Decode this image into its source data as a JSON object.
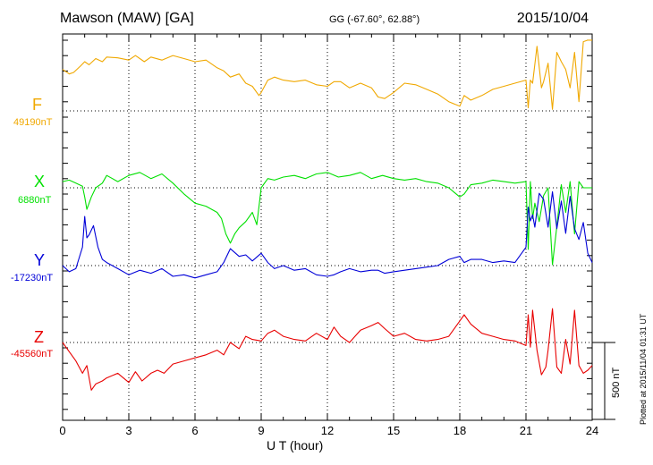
{
  "header": {
    "station": "Mawson (MAW)  [GA]",
    "coords": "GG (-67.60°,  62.88°)",
    "date": "2015/10/04"
  },
  "colors": {
    "F": "#f0a800",
    "X": "#00e000",
    "Y": "#0000d8",
    "Z": "#e80000"
  },
  "components": [
    {
      "key": "F",
      "name": "F",
      "baseline": "49190nT",
      "color": "#f0a800"
    },
    {
      "key": "X",
      "name": "X",
      "baseline": "6880nT",
      "color": "#00e000"
    },
    {
      "key": "Y",
      "name": "Y",
      "baseline": "-17230nT",
      "color": "#0000d8"
    },
    {
      "key": "Z",
      "name": "Z",
      "baseline": "-45560nT",
      "color": "#e80000"
    }
  ],
  "scale_bar": {
    "label": "500 nT",
    "value": 500
  },
  "plotted_note": "Plotted at 2015/11/04 01:31  UT",
  "chart_data": {
    "type": "line",
    "xlabel": "U T (hour)",
    "xlim": [
      0,
      24
    ],
    "xticks": [
      "0",
      "3",
      "6",
      "9",
      "12",
      "15",
      "18",
      "21",
      "24"
    ],
    "units": "nT",
    "series": [
      {
        "name": "F",
        "baseline": 49190,
        "x": [
          0,
          0.3,
          0.5,
          0.8,
          1,
          1.2,
          1.5,
          1.8,
          2,
          2.5,
          3,
          3.3,
          3.7,
          4,
          4.5,
          5,
          5.5,
          6,
          6.5,
          7,
          7.3,
          7.6,
          8,
          8.3,
          8.6,
          8.9,
          9,
          9.3,
          9.6,
          10,
          10.5,
          11,
          11.5,
          12,
          12.3,
          12.6,
          13,
          13.5,
          14,
          14.3,
          14.6,
          15,
          15.5,
          16,
          16.5,
          17,
          17.5,
          18,
          18.2,
          18.5,
          19,
          19.5,
          20,
          20.5,
          21,
          21.1,
          21.2,
          21.3,
          21.5,
          21.7,
          21.8,
          22,
          22.2,
          22.4,
          22.6,
          22.8,
          23,
          23.2,
          23.4,
          23.6,
          23.8,
          24
        ],
        "y": [
          270,
          240,
          250,
          290,
          320,
          300,
          340,
          320,
          350,
          345,
          330,
          360,
          320,
          350,
          330,
          360,
          340,
          320,
          330,
          280,
          260,
          220,
          240,
          180,
          160,
          100,
          120,
          200,
          220,
          200,
          190,
          200,
          170,
          160,
          190,
          190,
          150,
          180,
          150,
          90,
          80,
          120,
          180,
          170,
          140,
          110,
          60,
          30,
          100,
          70,
          100,
          140,
          160,
          180,
          200,
          20,
          200,
          180,
          420,
          150,
          190,
          310,
          10,
          380,
          320,
          270,
          150,
          380,
          60,
          450,
          460,
          460
        ]
      },
      {
        "name": "X",
        "baseline": 6880,
        "x": [
          0,
          0.3,
          0.6,
          0.9,
          1,
          1.1,
          1.3,
          1.5,
          1.8,
          2,
          2.5,
          3,
          3.5,
          4,
          4.5,
          5,
          5.5,
          6,
          6.5,
          7,
          7.2,
          7.4,
          7.6,
          7.8,
          8,
          8.3,
          8.6,
          8.8,
          9,
          9.3,
          9.6,
          10,
          10.5,
          11,
          11.5,
          12,
          12.5,
          13,
          13.5,
          14,
          14.5,
          15,
          15.5,
          16,
          16.5,
          17,
          17.5,
          18,
          18.2,
          18.5,
          19,
          19.5,
          20,
          20.5,
          21,
          21.1,
          21.2,
          21.3,
          21.4,
          21.6,
          21.8,
          22,
          22.2,
          22.4,
          22.6,
          22.8,
          23,
          23.2,
          23.4,
          23.6,
          23.8,
          24
        ],
        "y": [
          40,
          50,
          30,
          10,
          -60,
          -140,
          -60,
          0,
          30,
          80,
          40,
          80,
          100,
          60,
          90,
          30,
          -40,
          -100,
          -120,
          -160,
          -200,
          -300,
          -360,
          -300,
          -260,
          -220,
          -160,
          -240,
          0,
          60,
          50,
          70,
          80,
          60,
          90,
          100,
          70,
          80,
          100,
          60,
          80,
          60,
          50,
          60,
          40,
          30,
          0,
          -60,
          -40,
          20,
          30,
          50,
          40,
          30,
          40,
          -400,
          40,
          -200,
          -100,
          -220,
          -50,
          0,
          -500,
          -250,
          20,
          -160,
          40,
          -300,
          40,
          0,
          0,
          0
        ]
      },
      {
        "name": "Y",
        "baseline": -17230,
        "x": [
          0,
          0.3,
          0.6,
          0.9,
          1,
          1.1,
          1.2,
          1.4,
          1.6,
          1.8,
          2,
          2.5,
          3,
          3.5,
          4,
          4.5,
          5,
          5.5,
          6,
          6.5,
          7,
          7.3,
          7.6,
          8,
          8.3,
          8.6,
          9,
          9.3,
          9.6,
          10,
          10.5,
          11,
          11.5,
          12,
          12.3,
          12.6,
          13,
          13.5,
          14,
          14.3,
          14.6,
          15,
          15.5,
          16,
          16.5,
          17,
          17.5,
          18,
          18.2,
          18.5,
          19,
          19.5,
          20,
          20.5,
          21,
          21.1,
          21.2,
          21.3,
          21.4,
          21.6,
          21.8,
          22,
          22.2,
          22.4,
          22.6,
          22.8,
          23,
          23.2,
          23.4,
          23.6,
          23.8,
          24
        ],
        "y": [
          0,
          -40,
          -20,
          120,
          320,
          180,
          200,
          260,
          120,
          40,
          20,
          -20,
          -60,
          -30,
          -50,
          -20,
          -70,
          -60,
          -80,
          -60,
          -40,
          20,
          110,
          60,
          70,
          30,
          80,
          20,
          -20,
          0,
          -30,
          -20,
          -60,
          -70,
          -60,
          -40,
          -20,
          -40,
          -30,
          -30,
          -50,
          -40,
          -30,
          -20,
          -10,
          0,
          40,
          60,
          20,
          40,
          40,
          20,
          30,
          20,
          120,
          380,
          290,
          330,
          250,
          470,
          430,
          250,
          480,
          240,
          420,
          210,
          450,
          240,
          170,
          280,
          80,
          20
        ]
      },
      {
        "name": "Z",
        "baseline": -45560,
        "x": [
          0,
          0.3,
          0.6,
          0.9,
          1.1,
          1.3,
          1.5,
          1.8,
          2,
          2.5,
          3,
          3.3,
          3.6,
          4,
          4.3,
          4.6,
          5,
          5.5,
          6,
          6.5,
          7,
          7.3,
          7.6,
          8,
          8.3,
          8.6,
          9,
          9.3,
          9.6,
          10,
          10.5,
          11,
          11.5,
          12,
          12.3,
          12.6,
          13,
          13.5,
          14,
          14.3,
          14.6,
          15,
          15.5,
          16,
          16.5,
          17,
          17.5,
          18,
          18.2,
          18.5,
          19,
          19.5,
          20,
          20.5,
          21,
          21.1,
          21.2,
          21.3,
          21.5,
          21.7,
          21.9,
          22,
          22.2,
          22.4,
          22.6,
          22.8,
          23,
          23.2,
          23.4,
          23.6,
          23.8,
          24
        ],
        "y": [
          0,
          -60,
          -120,
          -200,
          -150,
          -310,
          -270,
          -250,
          -230,
          -200,
          -260,
          -190,
          -250,
          -200,
          -180,
          -200,
          -140,
          -120,
          -100,
          -80,
          -50,
          -80,
          0,
          -40,
          40,
          20,
          10,
          60,
          80,
          40,
          20,
          10,
          60,
          20,
          100,
          40,
          0,
          80,
          110,
          130,
          90,
          40,
          60,
          20,
          10,
          20,
          40,
          140,
          180,
          120,
          60,
          40,
          20,
          10,
          -20,
          180,
          -30,
          210,
          -50,
          -210,
          -160,
          -50,
          220,
          -160,
          -200,
          20,
          -140,
          210,
          -150,
          -200,
          -180,
          -150
        ]
      }
    ]
  }
}
